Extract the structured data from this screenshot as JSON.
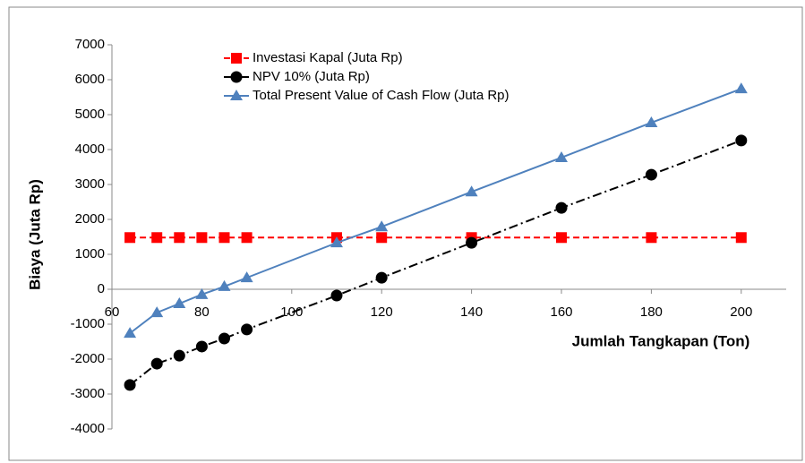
{
  "chart_data": {
    "type": "line",
    "xlabel": "Jumlah Tangkapan (Ton)",
    "ylabel": "Biaya (Juta Rp)",
    "x": [
      64,
      70,
      75,
      80,
      85,
      90,
      110,
      120,
      140,
      160,
      180,
      200
    ],
    "series": [
      {
        "name": "Investasi Kapal (Juta Rp)",
        "color": "#ff0000",
        "line_style": "dashed",
        "marker": "square",
        "values": [
          1480,
          1480,
          1480,
          1480,
          1480,
          1480,
          1480,
          1480,
          1480,
          1480,
          1480,
          1480
        ]
      },
      {
        "name": "NPV 10% (Juta Rp)",
        "color": "#000000",
        "line_style": "dashdot",
        "marker": "circle",
        "values": [
          -2740,
          -2130,
          -1900,
          -1640,
          -1410,
          -1150,
          -180,
          330,
          1330,
          2330,
          3280,
          4260
        ]
      },
      {
        "name": "Total Present Value of Cash Flow (Juta Rp)",
        "color": "#4f81bd",
        "line_style": "solid",
        "marker": "triangle",
        "values": [
          -1260,
          -670,
          -410,
          -150,
          80,
          330,
          1330,
          1790,
          2790,
          3770,
          4770,
          5740
        ]
      }
    ],
    "xlim": [
      60,
      210
    ],
    "xticks": [
      60,
      80,
      100,
      120,
      140,
      160,
      180,
      200
    ],
    "ylim": [
      -4000,
      7000
    ],
    "yticks": [
      -4000,
      -3000,
      -2000,
      -1000,
      0,
      1000,
      2000,
      3000,
      4000,
      5000,
      6000,
      7000
    ],
    "grid": false,
    "legend": "top"
  }
}
